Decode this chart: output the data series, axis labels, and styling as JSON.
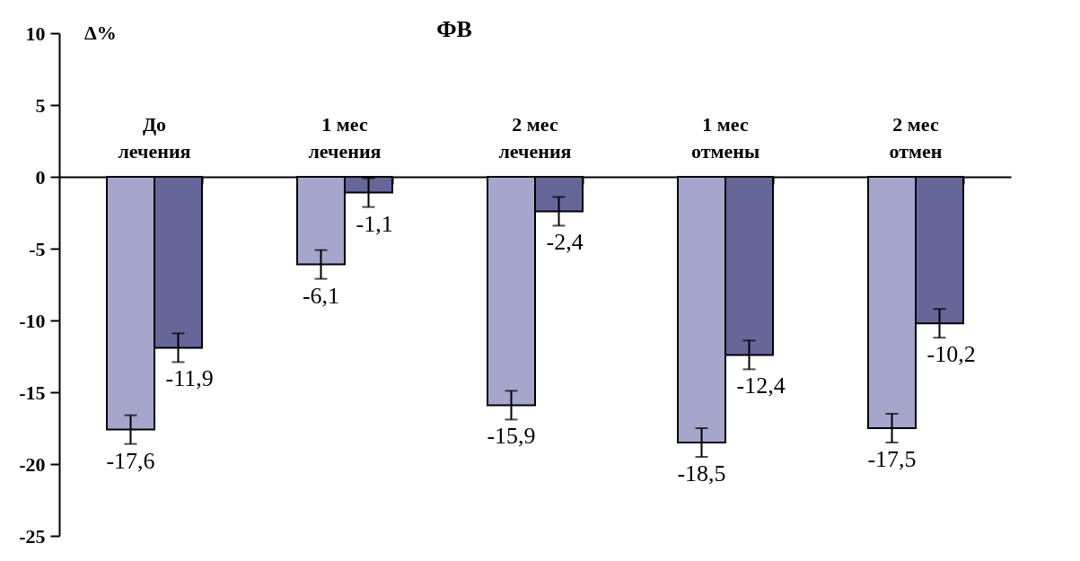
{
  "chart_data": {
    "type": "bar",
    "title": "ФВ",
    "ylabel": "Δ%",
    "categories": [
      "До\nлечения",
      "1 мес\nлечения",
      "2 мес\nлечения",
      "1 мес\nотмены",
      "2 мес\nотмен"
    ],
    "series": [
      {
        "color": "#a6a6cc",
        "values": [
          -17.6,
          -6.1,
          -15.9,
          -18.5,
          -17.5
        ],
        "errors": [
          1,
          1,
          1,
          1,
          1
        ],
        "value_labels": [
          "-17,6",
          "-6,1",
          "-15,9",
          "-18,5",
          "-17,5"
        ]
      },
      {
        "color": "#666699",
        "values": [
          -11.9,
          -1.1,
          -2.4,
          -12.4,
          -10.2
        ],
        "errors": [
          1,
          1,
          1,
          1,
          1
        ],
        "value_labels": [
          "-11,9",
          "-1,1",
          "-2,4",
          "-12,4",
          "-10,2"
        ]
      }
    ],
    "ylim": [
      -25,
      10
    ],
    "yticks": [
      10,
      5,
      0,
      -5,
      -10,
      -15,
      -20,
      -25
    ],
    "grid": false,
    "legend": false
  }
}
